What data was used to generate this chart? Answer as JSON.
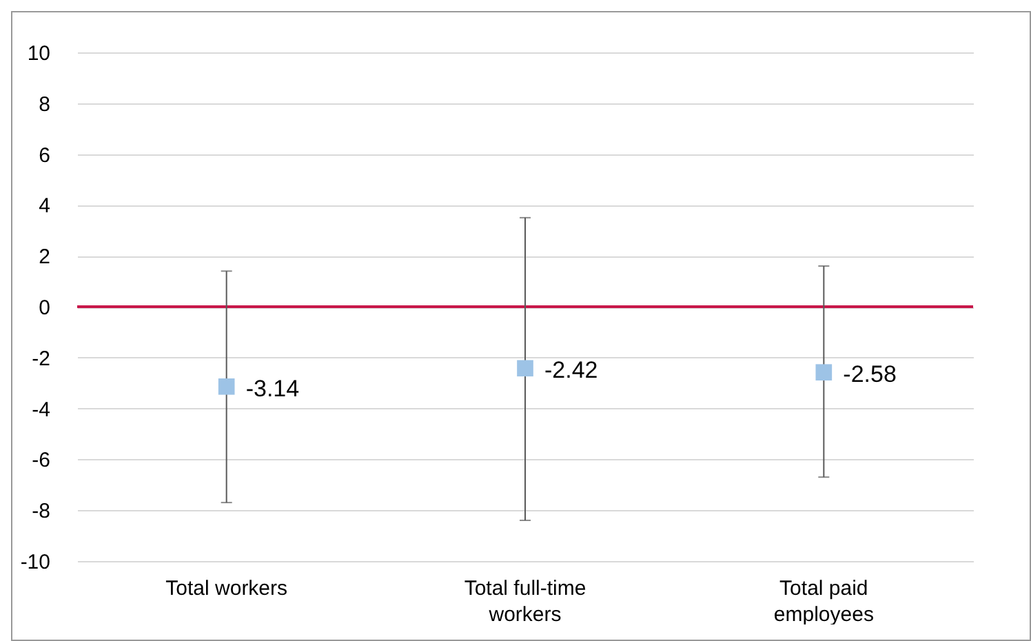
{
  "chart_data": {
    "type": "scatter",
    "categories": [
      "Total workers",
      "Total full-time workers",
      "Total paid employees"
    ],
    "series": [
      {
        "color": "#9dc3e6",
        "values": [
          -3.14,
          -2.42,
          -2.58
        ],
        "errors": [
          [
            -7.7,
            1.4
          ],
          [
            -8.4,
            3.5
          ],
          [
            -6.7,
            1.6
          ]
        ]
      }
    ],
    "ylim": [
      -10,
      10
    ],
    "yticks": [
      -10,
      -8,
      -6,
      -4,
      -2,
      0,
      2,
      4,
      6,
      8,
      10
    ],
    "grid": "y",
    "marker": "square",
    "data_labels": true,
    "ref_lines": [
      {
        "axis": "y",
        "value": 0,
        "color": "#c8174a"
      }
    ]
  }
}
